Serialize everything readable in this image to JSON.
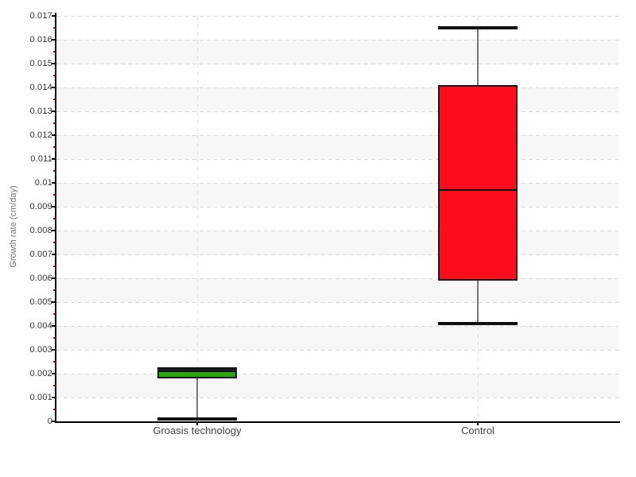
{
  "chart_data": {
    "type": "boxplot",
    "title": "",
    "ylabel": "Growth rate (cm/day)",
    "xlabel": "",
    "ylim": [
      0,
      0.017
    ],
    "ytick_step": 0.001,
    "grid": "dashed horizontal gridline every 0.001; dashed vertical gridline at each category center; alternating light-gray horizontal bands; red minor ticks every 0.0005 on y-axis",
    "legend": "none",
    "categories": [
      "Groasis technology",
      "Control"
    ],
    "series": [
      {
        "name": "Groasis technology",
        "box_color": "#2aa30f",
        "whisker_low": 0.0001,
        "q1": 0.0018,
        "median": 0.0021,
        "q3": 0.0022,
        "whisker_high": 0.0022
      },
      {
        "name": "Control",
        "box_color": "#fc0d1b",
        "whisker_low": 0.0041,
        "q1": 0.0059,
        "median": 0.0097,
        "q3": 0.0141,
        "whisker_high": 0.0165
      }
    ],
    "colors": {
      "band": "#f7f7f7",
      "h_gridline": "#dcdcdc",
      "v_gridline": "#e4e4e4",
      "axis": "#000000",
      "tick_label": "#333333",
      "major_tick": "#000000",
      "minor_tick": "#dd0000",
      "box_border": "#1a1a1a",
      "median_line": "#111111",
      "whisker_stem": "#777777",
      "whisker_cap": "#111111",
      "axis_title": "#777777",
      "category_label": "#444444",
      "background": "#ffffff"
    }
  }
}
